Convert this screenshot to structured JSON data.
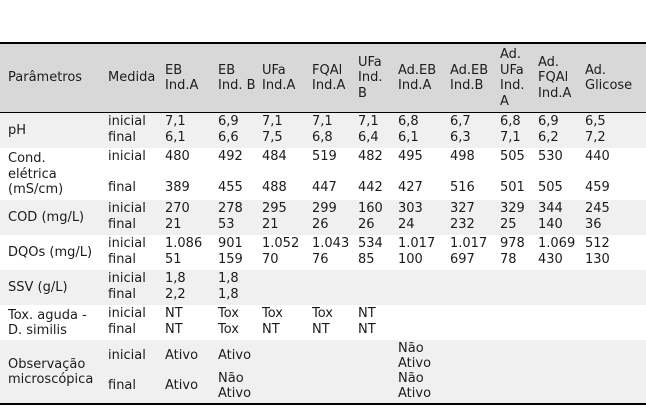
{
  "table": {
    "columns": [
      "Parâmetros",
      "Medida",
      "EB Ind.A",
      "EB Ind. B",
      "UFa Ind.A",
      "FQAl Ind.A",
      "UFa Ind. B",
      "Ad.EB Ind.A",
      "Ad.EB Ind.B",
      "Ad. UFa Ind. A",
      "Ad. FQAl Ind.A",
      "Ad. Glicose"
    ],
    "rows": [
      {
        "param": "pH",
        "type": "normal",
        "shaded": true,
        "medida": [
          "inicial",
          "final"
        ],
        "values": [
          [
            "7,1",
            "6,1"
          ],
          [
            "6,9",
            "6,6"
          ],
          [
            "7,1",
            "7,5"
          ],
          [
            "7,1",
            "6,8"
          ],
          [
            "7,1",
            "6,4"
          ],
          [
            "6,8",
            "6,1"
          ],
          [
            "6,7",
            "6,3"
          ],
          [
            "6,8",
            "7,1"
          ],
          [
            "6,9",
            "6,2"
          ],
          [
            "6,5",
            "7,2"
          ]
        ]
      },
      {
        "param": "Cond.\nelétrica\n(mS/cm)",
        "type": "cond",
        "shaded": false,
        "medida": [
          "inicial",
          "final"
        ],
        "values": [
          [
            "480",
            "389"
          ],
          [
            "492",
            "455"
          ],
          [
            "484",
            "488"
          ],
          [
            "519",
            "447"
          ],
          [
            "482",
            "442"
          ],
          [
            "495",
            "427"
          ],
          [
            "498",
            "516"
          ],
          [
            "505",
            "501"
          ],
          [
            "530",
            "505"
          ],
          [
            "440",
            "459"
          ]
        ]
      },
      {
        "param": "COD (mg/L)",
        "type": "normal",
        "shaded": true,
        "medida": [
          "inicial",
          "final"
        ],
        "values": [
          [
            "270",
            "21"
          ],
          [
            "278",
            "53"
          ],
          [
            "295",
            "21"
          ],
          [
            "299",
            "26"
          ],
          [
            "160",
            "26"
          ],
          [
            "303",
            "24"
          ],
          [
            "327",
            "232"
          ],
          [
            "329",
            "25"
          ],
          [
            "344",
            "140"
          ],
          [
            "245",
            "36"
          ]
        ]
      },
      {
        "param": "DQOs (mg/L)",
        "type": "normal",
        "shaded": false,
        "medida": [
          "inicial",
          "final"
        ],
        "values": [
          [
            "1.086",
            "51"
          ],
          [
            "901",
            "159"
          ],
          [
            "1.052",
            "70"
          ],
          [
            "1.043",
            "76"
          ],
          [
            "534",
            "85"
          ],
          [
            "1.017",
            "100"
          ],
          [
            "1.017",
            "697"
          ],
          [
            "978",
            "78"
          ],
          [
            "1.069",
            "430"
          ],
          [
            "512",
            "130"
          ]
        ]
      },
      {
        "param": "SSV (g/L)",
        "type": "normal",
        "shaded": true,
        "medida": [
          "inicial",
          "final"
        ],
        "values": [
          [
            "1,8",
            "2,2"
          ],
          [
            "1,8",
            "1,8"
          ],
          [
            "",
            ""
          ],
          [
            "",
            ""
          ],
          [
            "",
            ""
          ],
          [
            "",
            ""
          ],
          [
            "",
            ""
          ],
          [
            "",
            ""
          ],
          [
            "",
            ""
          ],
          [
            "",
            ""
          ]
        ]
      },
      {
        "param": "Tox. aguda -\nD. similis",
        "type": "normal",
        "shaded": false,
        "medida": [
          "inicial",
          "final"
        ],
        "values": [
          [
            "NT",
            "NT"
          ],
          [
            "Tox",
            "Tox"
          ],
          [
            "Tox",
            "NT"
          ],
          [
            "Tox",
            "NT"
          ],
          [
            "NT",
            "NT"
          ],
          [
            "",
            ""
          ],
          [
            "",
            ""
          ],
          [
            "",
            ""
          ],
          [
            "",
            ""
          ],
          [
            "",
            ""
          ]
        ]
      },
      {
        "param": "Observação\nmicroscópica",
        "type": "obs",
        "shaded": true,
        "medida": [
          "inicial",
          "final"
        ],
        "values": [
          [
            "Ativo",
            "Ativo"
          ],
          [
            "Ativo",
            "Não Ativo"
          ],
          [
            "",
            ""
          ],
          [
            "",
            ""
          ],
          [
            "",
            ""
          ],
          [
            "Não Ativo",
            "Não Ativo"
          ],
          [
            "",
            ""
          ],
          [
            "",
            ""
          ],
          [
            "",
            ""
          ],
          [
            "",
            ""
          ]
        ]
      }
    ]
  }
}
